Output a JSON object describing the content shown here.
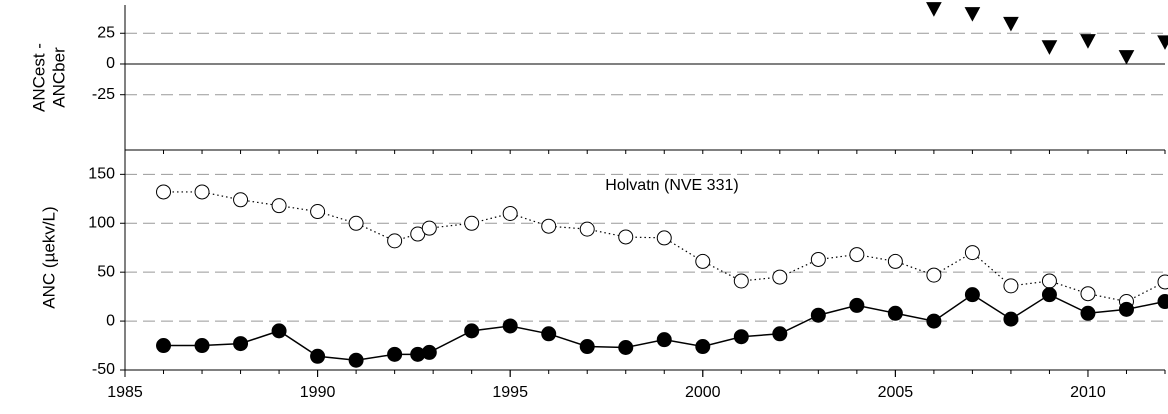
{
  "chart_data": [
    {
      "type": "scatter",
      "ylabel": [
        "ANCest -",
        "ANCber"
      ],
      "xlim": [
        1985,
        2012
      ],
      "ylim": [
        -70,
        48
      ],
      "yticks": [
        -25,
        0,
        25
      ],
      "grid": true,
      "zero_line": true,
      "x_minor_ticks": [
        1985,
        1986,
        1987,
        1988,
        1989,
        1990,
        1991,
        1992,
        1993,
        1994,
        1995,
        1996,
        1997,
        1998,
        1999,
        2000,
        2001,
        2002,
        2003,
        2004,
        2005,
        2006,
        2007,
        2008,
        2009,
        2010,
        2011,
        2012
      ],
      "series": [
        {
          "color": "#000000",
          "marker": "triangle-down",
          "marker_fill": "#000000",
          "x": [
            2006,
            2007,
            2008,
            2009,
            2010,
            2011,
            2012
          ],
          "values": [
            45,
            41,
            33,
            14,
            19,
            6,
            18
          ]
        }
      ]
    },
    {
      "type": "line",
      "ylabel": "ANC (µekv/L)",
      "annotation": "Holvatn (NVE 331)",
      "xlim": [
        1985,
        2012
      ],
      "ylim": [
        -50,
        180
      ],
      "yticks": [
        -50,
        0,
        50,
        100,
        150
      ],
      "xticks": [
        1985,
        1990,
        1995,
        2000,
        2005,
        2010
      ],
      "grid": true,
      "x_minor_ticks": [
        1985,
        1986,
        1987,
        1988,
        1989,
        1990,
        1991,
        1992,
        1993,
        1994,
        1995,
        1996,
        1997,
        1998,
        1999,
        2000,
        2001,
        2002,
        2003,
        2004,
        2005,
        2006,
        2007,
        2008,
        2009,
        2010,
        2011,
        2012
      ],
      "x": [
        1986,
        1987,
        1988,
        1989,
        1990,
        1991,
        1992,
        1992.6,
        1992.9,
        1994,
        1995,
        1996,
        1997,
        1998,
        1999,
        2000,
        2001,
        2002,
        2003,
        2004,
        2005,
        2006,
        2007,
        2008,
        2009,
        2010,
        2011,
        2012
      ],
      "series": [
        {
          "color": "#000000",
          "marker": "circle",
          "marker_fill": "#ffffff",
          "line_style": "dotted",
          "values": [
            132,
            132,
            124,
            118,
            112,
            100,
            82,
            89,
            95,
            100,
            110,
            97,
            94,
            86,
            85,
            61,
            41,
            45,
            63,
            68,
            61,
            47,
            70,
            36,
            41,
            28,
            20,
            40
          ]
        },
        {
          "color": "#000000",
          "marker": "circle",
          "marker_fill": "#000000",
          "line_style": "solid",
          "values": [
            -25,
            -25,
            -23,
            -10,
            -36,
            -40,
            -34,
            -34,
            -32,
            -10,
            -5,
            -13,
            -26,
            -27,
            -19,
            -26,
            -16,
            -13,
            6,
            16,
            8,
            0,
            27,
            2,
            27,
            8,
            12,
            20
          ]
        }
      ]
    }
  ]
}
